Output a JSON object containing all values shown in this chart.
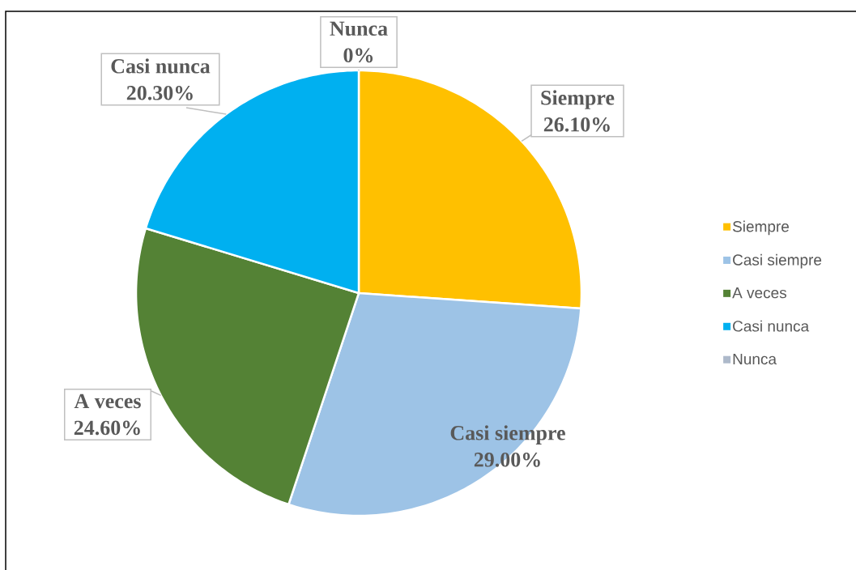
{
  "chart_data": {
    "type": "pie",
    "categories": [
      "Siempre",
      "Casi siempre",
      "A veces",
      "Casi nunca",
      "Nunca"
    ],
    "values": [
      26.1,
      29.0,
      24.6,
      20.3,
      0
    ],
    "colors": [
      "#ffc000",
      "#9dc3e6",
      "#548235",
      "#00b0f0",
      "#adb9ca"
    ],
    "value_labels": [
      "26.10%",
      "29.00%",
      "24.60%",
      "20.30%",
      "0%"
    ],
    "legend": "right"
  }
}
